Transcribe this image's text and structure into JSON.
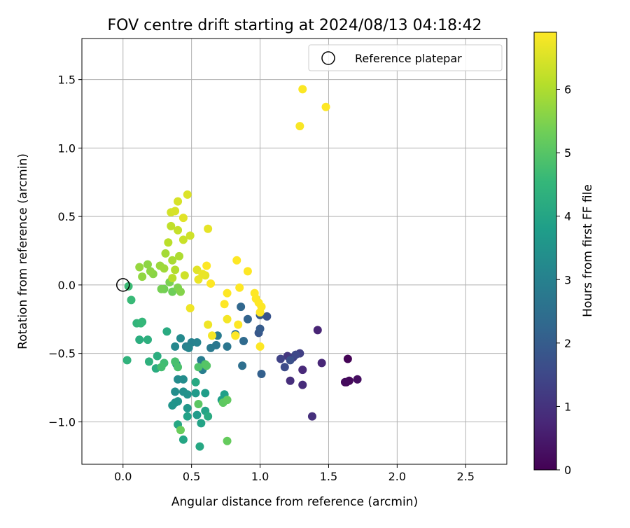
{
  "chart_data": {
    "type": "scatter",
    "title": "FOV centre drift starting at 2024/08/13 04:18:42",
    "xlabel": "Angular distance from reference (arcmin)",
    "ylabel": "Rotation from reference (arcmin)",
    "xlim": [
      -0.3,
      2.8
    ],
    "ylim": [
      -1.31,
      1.8
    ],
    "x_ticks": [
      0.0,
      0.5,
      1.0,
      1.5,
      2.0,
      2.5
    ],
    "x_tick_labels": [
      "0.0",
      "0.5",
      "1.0",
      "1.5",
      "2.0",
      "2.5"
    ],
    "y_ticks": [
      -1.0,
      -0.5,
      0.0,
      0.5,
      1.0,
      1.5
    ],
    "y_tick_labels": [
      "−1.0",
      "−0.5",
      "0.0",
      "0.5",
      "1.0",
      "1.5"
    ],
    "grid": true,
    "legend": {
      "position": "upper right",
      "label": "Reference platepar"
    },
    "reference_point": {
      "x": 0.0,
      "y": 0.0
    },
    "colorbar": {
      "label": "Hours from first FF file",
      "colormap": "viridis",
      "range": [
        0,
        6.9
      ],
      "ticks": [
        0,
        1,
        2,
        3,
        4,
        5,
        6
      ],
      "tick_labels": [
        "0",
        "1",
        "2",
        "3",
        "4",
        "5",
        "6"
      ]
    },
    "color_stops": [
      "#440154",
      "#482878",
      "#3e4989",
      "#31688e",
      "#26828e",
      "#1f9e89",
      "#35b779",
      "#6ece58",
      "#b5de2b",
      "#fde725"
    ],
    "points": [
      [
        1.64,
        -0.54,
        0.05
      ],
      [
        1.63,
        -0.71,
        0.1
      ],
      [
        1.65,
        -0.7,
        0.15
      ],
      [
        1.62,
        -0.71,
        0.2
      ],
      [
        1.71,
        -0.69,
        0.25
      ],
      [
        1.42,
        -0.33,
        0.7
      ],
      [
        1.45,
        -0.57,
        0.75
      ],
      [
        1.31,
        -0.62,
        0.8
      ],
      [
        1.31,
        -0.73,
        0.85
      ],
      [
        1.22,
        -0.7,
        0.9
      ],
      [
        1.38,
        -0.96,
        0.95
      ],
      [
        1.2,
        -0.52,
        1.1
      ],
      [
        1.24,
        -0.53,
        1.2
      ],
      [
        1.29,
        -0.5,
        1.3
      ],
      [
        1.15,
        -0.54,
        1.4
      ],
      [
        1.26,
        -0.51,
        1.5
      ],
      [
        1.18,
        -0.6,
        1.6
      ],
      [
        1.22,
        -0.55,
        1.7
      ],
      [
        1.05,
        -0.23,
        1.8
      ],
      [
        0.99,
        -0.35,
        1.9
      ],
      [
        1.0,
        -0.22,
        1.95
      ],
      [
        1.0,
        -0.32,
        2.0
      ],
      [
        1.01,
        -0.65,
        2.1
      ],
      [
        0.91,
        -0.25,
        2.2
      ],
      [
        0.86,
        -0.16,
        2.3
      ],
      [
        0.88,
        -0.41,
        2.4
      ],
      [
        0.87,
        -0.59,
        2.5
      ],
      [
        0.82,
        -0.36,
        2.6
      ],
      [
        0.76,
        -0.45,
        2.7
      ],
      [
        0.68,
        -0.44,
        2.75
      ],
      [
        0.64,
        -0.46,
        2.8
      ],
      [
        0.69,
        -0.37,
        2.85
      ],
      [
        0.57,
        -0.55,
        2.9
      ],
      [
        0.58,
        -0.62,
        2.95
      ],
      [
        0.46,
        -0.45,
        3.0
      ],
      [
        0.5,
        -0.42,
        3.05
      ],
      [
        0.54,
        -0.42,
        3.1
      ],
      [
        0.48,
        -0.46,
        3.15
      ],
      [
        0.38,
        -0.45,
        3.2
      ],
      [
        0.42,
        -0.39,
        3.25
      ],
      [
        0.39,
        -0.58,
        3.3
      ],
      [
        0.4,
        -0.69,
        3.3
      ],
      [
        0.44,
        -0.69,
        3.35
      ],
      [
        0.38,
        -0.78,
        3.4
      ],
      [
        0.44,
        -0.78,
        3.45
      ],
      [
        0.47,
        -0.8,
        3.5
      ],
      [
        0.38,
        -0.86,
        3.5
      ],
      [
        0.4,
        -0.85,
        3.55
      ],
      [
        0.36,
        -0.88,
        3.6
      ],
      [
        0.47,
        -0.9,
        3.65
      ],
      [
        0.53,
        -0.79,
        3.7
      ],
      [
        0.54,
        -0.95,
        3.75
      ],
      [
        0.6,
        -0.79,
        3.8
      ],
      [
        0.72,
        -0.84,
        3.85
      ],
      [
        0.74,
        -0.8,
        3.9
      ],
      [
        0.47,
        -0.96,
        3.95
      ],
      [
        0.6,
        -0.92,
        4.0
      ],
      [
        0.57,
        -1.01,
        4.0
      ],
      [
        0.44,
        -1.13,
        4.05
      ],
      [
        0.56,
        -1.18,
        4.1
      ],
      [
        0.4,
        -1.02,
        4.1
      ],
      [
        0.53,
        -0.71,
        4.15
      ],
      [
        0.62,
        -0.96,
        4.2
      ],
      [
        0.32,
        -0.34,
        4.2
      ],
      [
        0.24,
        -0.61,
        4.25
      ],
      [
        0.25,
        -0.52,
        4.3
      ],
      [
        0.12,
        -0.4,
        4.3
      ],
      [
        0.18,
        -0.4,
        4.35
      ],
      [
        0.19,
        -0.56,
        4.4
      ],
      [
        0.03,
        -0.55,
        4.45
      ],
      [
        0.1,
        -0.28,
        4.5
      ],
      [
        0.14,
        -0.27,
        4.55
      ],
      [
        0.13,
        -0.28,
        4.6
      ],
      [
        0.06,
        -0.11,
        4.65
      ],
      [
        0.04,
        -0.01,
        4.7
      ],
      [
        0.3,
        -0.57,
        4.75
      ],
      [
        0.28,
        -0.6,
        4.8
      ],
      [
        0.38,
        -0.56,
        4.85
      ],
      [
        0.4,
        -0.6,
        4.9
      ],
      [
        0.55,
        -0.6,
        4.95
      ],
      [
        0.6,
        -0.58,
        5.0
      ],
      [
        0.61,
        -0.59,
        5.05
      ],
      [
        0.55,
        -0.87,
        5.1
      ],
      [
        0.73,
        -0.86,
        5.15
      ],
      [
        0.76,
        -0.84,
        5.2
      ],
      [
        0.76,
        -1.14,
        5.25
      ],
      [
        0.42,
        -1.06,
        5.3
      ],
      [
        0.36,
        -0.05,
        5.35
      ],
      [
        0.3,
        -0.03,
        5.4
      ],
      [
        0.28,
        -0.03,
        5.45
      ],
      [
        0.34,
        0.02,
        5.5
      ],
      [
        0.4,
        -0.02,
        5.55
      ],
      [
        0.42,
        -0.05,
        5.6
      ],
      [
        0.22,
        0.08,
        5.65
      ],
      [
        0.2,
        0.1,
        5.7
      ],
      [
        0.18,
        0.15,
        5.7
      ],
      [
        0.14,
        0.06,
        5.75
      ],
      [
        0.12,
        0.13,
        5.8
      ],
      [
        0.27,
        0.14,
        5.85
      ],
      [
        0.3,
        0.12,
        5.9
      ],
      [
        0.31,
        0.23,
        5.95
      ],
      [
        0.36,
        0.18,
        6.0
      ],
      [
        0.41,
        0.21,
        6.05
      ],
      [
        0.38,
        0.11,
        6.1
      ],
      [
        0.36,
        0.05,
        6.15
      ],
      [
        0.33,
        0.31,
        6.2
      ],
      [
        0.35,
        0.43,
        6.25
      ],
      [
        0.4,
        0.4,
        6.3
      ],
      [
        0.44,
        0.33,
        6.35
      ],
      [
        0.45,
        0.07,
        6.4
      ],
      [
        0.49,
        0.36,
        6.4
      ],
      [
        0.35,
        0.53,
        6.45
      ],
      [
        0.38,
        0.54,
        6.5
      ],
      [
        0.4,
        0.61,
        6.5
      ],
      [
        0.47,
        0.66,
        6.55
      ],
      [
        0.44,
        0.49,
        6.6
      ],
      [
        0.54,
        0.11,
        6.6
      ],
      [
        0.6,
        0.07,
        6.65
      ],
      [
        0.62,
        0.41,
        6.65
      ],
      [
        0.58,
        0.08,
        6.7
      ],
      [
        0.55,
        0.04,
        6.7
      ],
      [
        0.49,
        -0.17,
        6.75
      ],
      [
        0.62,
        -0.29,
        6.75
      ],
      [
        0.65,
        -0.37,
        6.8
      ],
      [
        0.76,
        -0.25,
        6.8
      ],
      [
        0.82,
        -0.37,
        6.85
      ],
      [
        1.29,
        1.16,
        6.85
      ],
      [
        1.31,
        1.43,
        6.88
      ],
      [
        1.48,
        1.3,
        6.9
      ]
    ],
    "late_points": [
      [
        0.61,
        0.14
      ],
      [
        0.64,
        0.01
      ],
      [
        0.76,
        -0.06
      ],
      [
        0.74,
        -0.14
      ],
      [
        0.83,
        0.18
      ],
      [
        0.91,
        0.1
      ],
      [
        0.84,
        -0.29
      ],
      [
        0.82,
        -0.37
      ],
      [
        0.96,
        -0.06
      ],
      [
        0.97,
        -0.1
      ],
      [
        0.99,
        -0.13
      ],
      [
        1.01,
        -0.16
      ],
      [
        1.0,
        -0.2
      ],
      [
        1.0,
        -0.45
      ],
      [
        0.85,
        -0.02
      ]
    ]
  }
}
